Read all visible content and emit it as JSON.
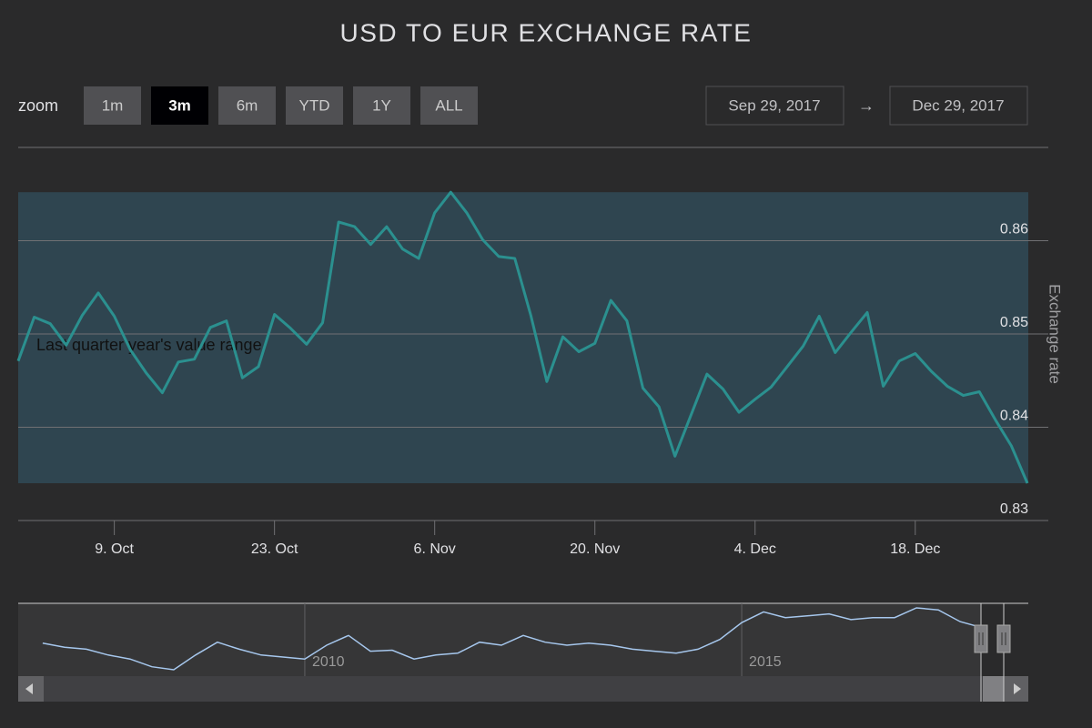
{
  "chart_data": [
    {
      "type": "line",
      "title": "USD TO EUR EXCHANGE RATE",
      "y_label": "Exchange rate",
      "color": "#2b908f",
      "grid": true,
      "x": [
        "09-29",
        "10-02",
        "10-03",
        "10-04",
        "10-05",
        "10-06",
        "10-09",
        "10-10",
        "10-11",
        "10-12",
        "10-13",
        "10-16",
        "10-17",
        "10-18",
        "10-19",
        "10-20",
        "10-23",
        "10-24",
        "10-25",
        "10-26",
        "10-27",
        "10-30",
        "10-31",
        "11-01",
        "11-02",
        "11-03",
        "11-06",
        "11-07",
        "11-08",
        "11-09",
        "11-10",
        "11-13",
        "11-14",
        "11-15",
        "11-16",
        "11-17",
        "11-20",
        "11-21",
        "11-22",
        "11-23",
        "11-24",
        "11-27",
        "11-28",
        "11-29",
        "11-30",
        "12-01",
        "12-04",
        "12-05",
        "12-06",
        "12-07",
        "12-08",
        "12-11",
        "12-12",
        "12-13",
        "12-14",
        "12-15",
        "12-18",
        "12-19",
        "12-20",
        "12-21",
        "12-22",
        "12-27",
        "12-28",
        "12-29"
      ],
      "values": [
        0.8471,
        0.8518,
        0.8511,
        0.8488,
        0.852,
        0.8544,
        0.8519,
        0.8483,
        0.8458,
        0.8437,
        0.847,
        0.8473,
        0.8507,
        0.8514,
        0.8453,
        0.8465,
        0.8521,
        0.8506,
        0.8489,
        0.8512,
        0.862,
        0.8615,
        0.8596,
        0.8615,
        0.8591,
        0.8581,
        0.863,
        0.8652,
        0.863,
        0.8601,
        0.8583,
        0.8581,
        0.852,
        0.8449,
        0.8497,
        0.8481,
        0.849,
        0.8536,
        0.8514,
        0.8442,
        0.8422,
        0.8369,
        0.8413,
        0.8457,
        0.8441,
        0.8416,
        0.843,
        0.8443,
        0.8465,
        0.8487,
        0.8519,
        0.848,
        0.8502,
        0.8523,
        0.8444,
        0.8471,
        0.8479,
        0.846,
        0.8444,
        0.8434,
        0.8438,
        0.8408,
        0.838,
        0.834
      ],
      "ylim": [
        0.83,
        0.87
      ],
      "yticks": [
        0.83,
        0.84,
        0.85,
        0.86
      ],
      "xticks": [
        {
          "value": "10-09",
          "label": "9. Oct"
        },
        {
          "value": "10-23",
          "label": "23. Oct"
        },
        {
          "value": "11-06",
          "label": "6. Nov"
        },
        {
          "value": "11-20",
          "label": "20. Nov"
        },
        {
          "value": "12-04",
          "label": "4. Dec"
        },
        {
          "value": "12-18",
          "label": "18. Dec"
        }
      ],
      "plot_band": {
        "from": 0.834,
        "to": 0.8652,
        "label": "Last quarter year's value range"
      }
    },
    {
      "type": "line",
      "color": "#a6c7ed",
      "x": [
        2007,
        2007.25,
        2007.5,
        2007.75,
        2008,
        2008.25,
        2008.5,
        2008.75,
        2009,
        2009.25,
        2009.5,
        2009.75,
        2010,
        2010.25,
        2010.5,
        2010.75,
        2011,
        2011.25,
        2011.5,
        2011.75,
        2012,
        2012.25,
        2012.5,
        2012.75,
        2013,
        2013.25,
        2013.5,
        2013.75,
        2014,
        2014.25,
        2014.5,
        2014.75,
        2015,
        2015.25,
        2015.5,
        2015.75,
        2016,
        2016.25,
        2016.5,
        2016.75,
        2017,
        2017.25,
        2017.5,
        2017.75
      ],
      "values": [
        0.773,
        0.753,
        0.743,
        0.714,
        0.694,
        0.655,
        0.64,
        0.714,
        0.778,
        0.743,
        0.714,
        0.704,
        0.694,
        0.763,
        0.812,
        0.733,
        0.738,
        0.694,
        0.714,
        0.723,
        0.778,
        0.763,
        0.812,
        0.778,
        0.763,
        0.773,
        0.763,
        0.743,
        0.733,
        0.723,
        0.743,
        0.792,
        0.876,
        0.93,
        0.901,
        0.91,
        0.92,
        0.891,
        0.901,
        0.901,
        0.95,
        0.94,
        0.881,
        0.851
      ],
      "xlim": [
        2006.72,
        2018.28
      ],
      "xticks": [
        2010,
        2015
      ]
    }
  ],
  "range_selector": {
    "zoom_label": "zoom",
    "buttons": [
      "1m",
      "3m",
      "6m",
      "YTD",
      "1Y",
      "ALL"
    ],
    "selected": 1,
    "from": "Sep 29, 2017",
    "to": "Dec 29, 2017"
  }
}
